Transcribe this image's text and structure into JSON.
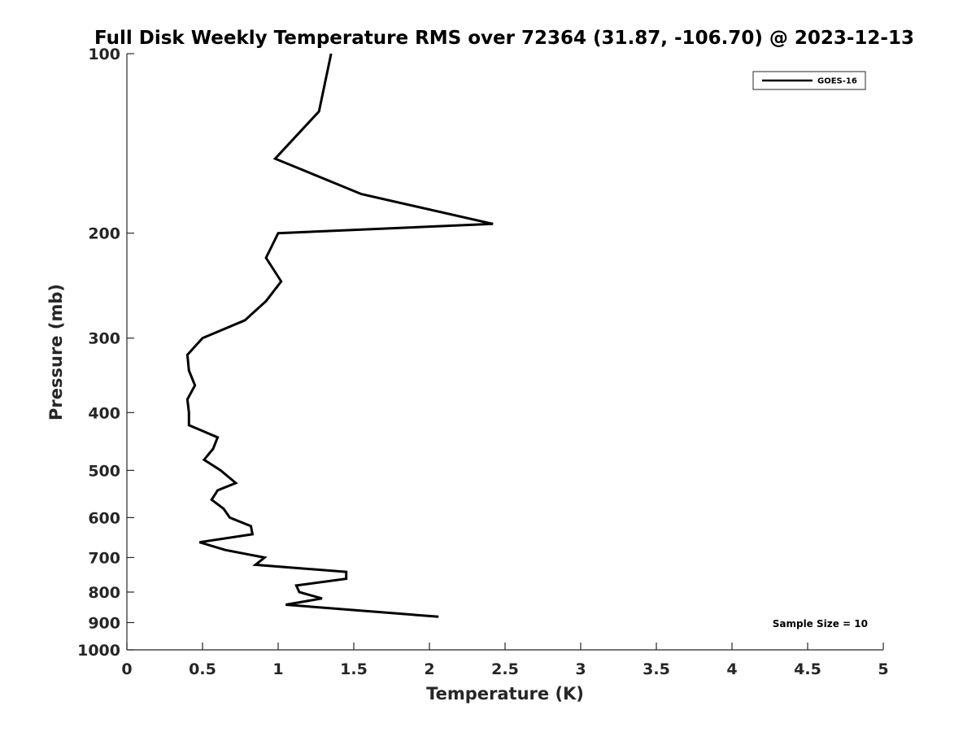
{
  "chart_data": {
    "type": "line",
    "title": "Full Disk Weekly Temperature RMS over 72364 (31.87, -106.70) @ 2023-12-13",
    "xlabel": "Temperature (K)",
    "ylabel": "Pressure (mb)",
    "xlim": [
      0,
      5
    ],
    "ylim": [
      100,
      1000
    ],
    "yscale": "log",
    "y_reversed": true,
    "x_ticks": [
      "0",
      "0.5",
      "1",
      "1.5",
      "2",
      "2.5",
      "3",
      "3.5",
      "4",
      "4.5",
      "5"
    ],
    "y_ticks": [
      "100",
      "200",
      "300",
      "400",
      "500",
      "600",
      "700",
      "800",
      "900",
      "1000"
    ],
    "legend": {
      "position": "top-right",
      "entries": [
        "GOES-16"
      ]
    },
    "annotation": "Sample Size = 10",
    "series": [
      {
        "name": "GOES-16",
        "color": "#000000",
        "points": [
          {
            "x": 1.35,
            "y": 100
          },
          {
            "x": 1.27,
            "y": 125
          },
          {
            "x": 0.98,
            "y": 150
          },
          {
            "x": 1.55,
            "y": 172
          },
          {
            "x": 2.42,
            "y": 193
          },
          {
            "x": 1.0,
            "y": 200
          },
          {
            "x": 0.92,
            "y": 220
          },
          {
            "x": 1.02,
            "y": 241
          },
          {
            "x": 0.92,
            "y": 260
          },
          {
            "x": 0.78,
            "y": 280
          },
          {
            "x": 0.5,
            "y": 300
          },
          {
            "x": 0.4,
            "y": 320
          },
          {
            "x": 0.41,
            "y": 340
          },
          {
            "x": 0.45,
            "y": 360
          },
          {
            "x": 0.4,
            "y": 380
          },
          {
            "x": 0.41,
            "y": 400
          },
          {
            "x": 0.41,
            "y": 420
          },
          {
            "x": 0.6,
            "y": 440
          },
          {
            "x": 0.57,
            "y": 460
          },
          {
            "x": 0.51,
            "y": 480
          },
          {
            "x": 0.62,
            "y": 500
          },
          {
            "x": 0.72,
            "y": 525
          },
          {
            "x": 0.6,
            "y": 540
          },
          {
            "x": 0.56,
            "y": 560
          },
          {
            "x": 0.64,
            "y": 580
          },
          {
            "x": 0.68,
            "y": 600
          },
          {
            "x": 0.82,
            "y": 620
          },
          {
            "x": 0.83,
            "y": 640
          },
          {
            "x": 0.48,
            "y": 660
          },
          {
            "x": 0.65,
            "y": 680
          },
          {
            "x": 0.91,
            "y": 700
          },
          {
            "x": 0.85,
            "y": 720
          },
          {
            "x": 1.45,
            "y": 740
          },
          {
            "x": 1.45,
            "y": 760
          },
          {
            "x": 1.12,
            "y": 780
          },
          {
            "x": 1.14,
            "y": 800
          },
          {
            "x": 1.29,
            "y": 820
          },
          {
            "x": 1.05,
            "y": 840
          },
          {
            "x": 2.06,
            "y": 880
          }
        ]
      }
    ]
  }
}
